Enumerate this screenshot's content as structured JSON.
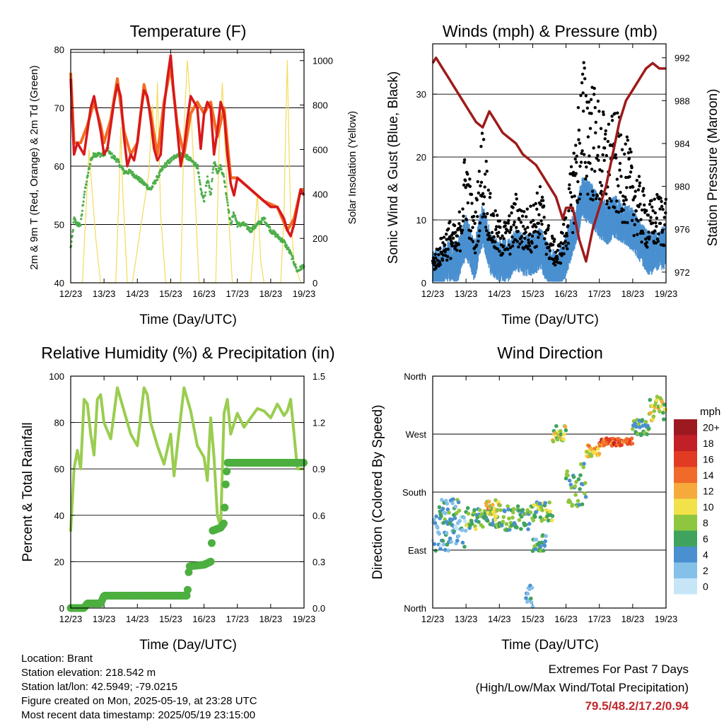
{
  "panels": {
    "temperature": {
      "title": "Temperature (F)",
      "ylabel_left": "2m & 9m T (Red, Orange) & 2m Td (Green)",
      "ylabel_right": "Solar Insolation (Yellow)",
      "xlabel": "Time (Day/UTC)"
    },
    "winds": {
      "title": "Winds (mph) & Pressure (mb)",
      "ylabel_left": "Sonic Wind & Gust (Blue, Black)",
      "ylabel_right": "Station Pressure (Maroon)",
      "xlabel": "Time (Day/UTC)"
    },
    "humidity": {
      "title": "Relative Humidity (%) & Precipitation (in)",
      "ylabel_left": "Percent & Total Rainfall",
      "xlabel": "Time (Day/UTC)"
    },
    "direction": {
      "title": "Wind Direction",
      "ylabel_left": "Direction (Colored By Speed)",
      "xlabel": "Time (Day/UTC)",
      "colorbar_title": "mph"
    }
  },
  "station": {
    "location": "Location: Brant",
    "elevation": "Station elevation: 218.542 m",
    "latlon": "Station lat/lon: 42.5949; -79.0215",
    "created": "Figure created on Mon, 2025-05-19, at 23:28 UTC",
    "recent": "Most recent data timestamp: 2025/05/19 23:15:00"
  },
  "extremes": {
    "title": "Extremes For Past 7 Days",
    "subtitle": "(High/Low/Max Wind/Total Precipitation)",
    "values": "79.5/48.2/17.2/0.94"
  },
  "colors": {
    "temp_2m": "#d7191c",
    "temp_9m": "#f46d23",
    "dewpoint": "#4daf4a",
    "solar": "#f3dc5a",
    "wind": "#4a90d0",
    "gust": "#000000",
    "pressure": "#9e1b1b",
    "rh": "#9acd50",
    "precip": "#4caf3f"
  },
  "chart_data": [
    {
      "type": "line",
      "panel": "temperature",
      "x_tick_labels": [
        "12/23",
        "13/23",
        "14/23",
        "15/23",
        "16/23",
        "17/23",
        "18/23",
        "19/23"
      ],
      "x_unit": "days since 12/23",
      "xlim": [
        0,
        7
      ],
      "ylim": [
        40,
        80
      ],
      "y_ticks": [
        40,
        50,
        60,
        70,
        80
      ],
      "y2lim": [
        0,
        1050
      ],
      "y2_ticks": [
        0,
        200,
        400,
        600,
        800,
        1000
      ],
      "grid": "horizontal",
      "series": [
        {
          "key": "t2m",
          "axis": "left",
          "x": [
            0,
            0.05,
            0.1,
            0.2,
            0.3,
            0.4,
            0.5,
            0.6,
            0.7,
            0.8,
            0.9,
            1.0,
            1.1,
            1.2,
            1.3,
            1.4,
            1.5,
            1.6,
            1.7,
            1.8,
            1.9,
            2.0,
            2.1,
            2.2,
            2.3,
            2.4,
            2.5,
            2.6,
            2.7,
            2.8,
            2.9,
            3.0,
            3.1,
            3.2,
            3.3,
            3.4,
            3.5,
            3.6,
            3.7,
            3.8,
            3.9,
            4.0,
            4.1,
            4.2,
            4.3,
            4.4,
            4.5,
            4.6,
            4.7,
            4.8,
            4.9,
            5.0,
            5.2,
            5.4,
            5.6,
            5.8,
            6.0,
            6.2,
            6.4,
            6.5,
            6.6,
            6.7,
            6.8,
            6.9,
            7.0
          ],
          "y": [
            75,
            68,
            62,
            64,
            63,
            62,
            66,
            70,
            72,
            69,
            66,
            62,
            63,
            67,
            71,
            74,
            72,
            65,
            60,
            62,
            61,
            64,
            69,
            73,
            72,
            68,
            63,
            61,
            62,
            70,
            75,
            79,
            72,
            66,
            60,
            63,
            68,
            72,
            71,
            70,
            63,
            69,
            71,
            70,
            62,
            66,
            71,
            69,
            62,
            57,
            55,
            58,
            57,
            56,
            55,
            54,
            53,
            53,
            51,
            49,
            48,
            50,
            53,
            56,
            55
          ]
        },
        {
          "key": "t9m",
          "axis": "left",
          "x": [
            0,
            0.1,
            0.3,
            0.5,
            0.7,
            0.9,
            1.0,
            1.2,
            1.4,
            1.6,
            1.8,
            2.0,
            2.2,
            2.4,
            2.6,
            2.8,
            3.0,
            3.2,
            3.4,
            3.6,
            3.8,
            4.0,
            4.2,
            4.4,
            4.6,
            4.8,
            5.0,
            5.4,
            5.8,
            6.2,
            6.5,
            6.7,
            6.9,
            7.0
          ],
          "y": [
            76,
            64,
            64,
            67,
            71,
            67,
            64,
            68,
            75,
            66,
            62,
            64,
            74,
            69,
            62,
            71,
            77,
            67,
            62,
            69,
            71,
            69,
            71,
            65,
            70,
            58,
            58,
            56,
            54,
            53,
            49,
            51,
            56,
            56
          ]
        },
        {
          "key": "dewpoint",
          "axis": "left",
          "x": [
            0,
            0.05,
            0.1,
            0.2,
            0.3,
            0.4,
            0.5,
            0.6,
            0.7,
            0.8,
            0.9,
            1.0,
            1.1,
            1.2,
            1.4,
            1.6,
            1.8,
            2.0,
            2.2,
            2.4,
            2.6,
            2.8,
            3.0,
            3.2,
            3.4,
            3.6,
            3.8,
            3.9,
            4.0,
            4.1,
            4.2,
            4.3,
            4.4,
            4.5,
            4.6,
            4.7,
            4.8,
            4.9,
            5.0,
            5.2,
            5.4,
            5.6,
            5.8,
            6.0,
            6.2,
            6.4,
            6.6,
            6.8,
            7.0
          ],
          "y": [
            46,
            48,
            51,
            50,
            50,
            55,
            58,
            61,
            62,
            62,
            62,
            62,
            63,
            62,
            61,
            59,
            59,
            58,
            57,
            56,
            58,
            60,
            61,
            62,
            62,
            61,
            60,
            56,
            54,
            58,
            55,
            61,
            59,
            60,
            58,
            54,
            50,
            52,
            50,
            50,
            49,
            50,
            51,
            49,
            48,
            47,
            45,
            42,
            43
          ]
        },
        {
          "key": "solar",
          "axis": "right",
          "x": [
            0,
            0.35,
            0.45,
            0.55,
            0.65,
            0.75,
            0.9,
            1.35,
            1.45,
            1.5,
            1.55,
            1.6,
            1.7,
            1.85,
            2.35,
            2.45,
            2.55,
            2.6,
            2.7,
            2.85,
            3.3,
            3.4,
            3.5,
            3.6,
            3.7,
            3.85,
            4.35,
            4.45,
            4.55,
            4.6,
            4.7,
            4.85,
            5.4,
            5.5,
            5.6,
            5.7,
            5.8,
            6.3,
            6.4,
            6.45,
            6.5,
            6.55,
            6.6,
            6.7,
            6.9,
            7.0
          ],
          "y": [
            0,
            0,
            300,
            600,
            400,
            200,
            0,
            0,
            400,
            700,
            450,
            300,
            0,
            0,
            500,
            800,
            600,
            900,
            300,
            0,
            0,
            700,
            1000,
            800,
            500,
            0,
            0,
            600,
            900,
            700,
            400,
            0,
            0,
            200,
            400,
            100,
            0,
            0,
            300,
            700,
            1000,
            600,
            300,
            100,
            0,
            0
          ]
        }
      ]
    },
    {
      "type": "line",
      "panel": "winds",
      "x_tick_labels": [
        "12/23",
        "13/23",
        "14/23",
        "15/23",
        "16/23",
        "17/23",
        "18/23",
        "19/23"
      ],
      "x_unit": "days since 12/23",
      "xlim": [
        0,
        7
      ],
      "ylim": [
        0,
        38
      ],
      "y_ticks": [
        0,
        10,
        20,
        30
      ],
      "y2lim": [
        971.0,
        993.3
      ],
      "y2_ticks": [
        972,
        976,
        980,
        984,
        988,
        992
      ],
      "grid": "horizontal",
      "series": [
        {
          "key": "pressure",
          "axis": "right",
          "x": [
            0,
            0.1,
            0.3,
            0.5,
            0.7,
            0.9,
            1.1,
            1.3,
            1.5,
            1.7,
            1.9,
            2.1,
            2.3,
            2.5,
            2.7,
            2.9,
            3.1,
            3.3,
            3.5,
            3.7,
            3.9,
            4.0,
            4.2,
            4.4,
            4.6,
            4.8,
            5.0,
            5.2,
            5.4,
            5.6,
            5.8,
            6.0,
            6.2,
            6.4,
            6.6,
            6.8,
            7.0
          ],
          "y": [
            991.5,
            992,
            991,
            990,
            989,
            988,
            987,
            986,
            985.5,
            987,
            986,
            985,
            984.5,
            984,
            983,
            982.5,
            982,
            981,
            980,
            979,
            977,
            978,
            978,
            975,
            973,
            976,
            978,
            980,
            983,
            986,
            988,
            989,
            990,
            991,
            991.5,
            991,
            991
          ]
        },
        {
          "key": "wind_mean",
          "axis": "left",
          "x": [
            0,
            0.25,
            0.5,
            0.75,
            1.0,
            1.25,
            1.5,
            1.75,
            2.0,
            2.25,
            2.5,
            2.75,
            3.0,
            3.25,
            3.5,
            3.75,
            4.0,
            4.25,
            4.5,
            4.75,
            5.0,
            5.25,
            5.5,
            5.75,
            6.0,
            6.25,
            6.5,
            6.75,
            7.0
          ],
          "y": [
            2,
            3,
            4,
            4,
            8,
            4,
            10,
            5,
            4,
            4,
            6,
            5,
            5,
            6,
            3,
            2,
            5,
            9,
            14,
            13,
            11,
            10,
            11,
            10,
            9,
            7,
            5,
            6,
            6
          ]
        },
        {
          "key": "gust_mean",
          "axis": "left",
          "x": [
            0,
            0.25,
            0.5,
            0.75,
            1.0,
            1.25,
            1.5,
            1.75,
            2.0,
            2.25,
            2.5,
            2.75,
            3.0,
            3.25,
            3.5,
            3.75,
            4.0,
            4.25,
            4.5,
            4.75,
            5.0,
            5.25,
            5.5,
            5.75,
            6.0,
            6.25,
            6.5,
            6.75,
            7.0
          ],
          "y": [
            3,
            5,
            7,
            6,
            16,
            7,
            18,
            9,
            7,
            7,
            10,
            8,
            9,
            11,
            6,
            4,
            8,
            16,
            25,
            23,
            20,
            18,
            19,
            17,
            14,
            11,
            9,
            10,
            10
          ]
        }
      ]
    },
    {
      "type": "line",
      "panel": "humidity",
      "x_tick_labels": [
        "12/23",
        "13/23",
        "14/23",
        "15/23",
        "16/23",
        "17/23",
        "18/23",
        "19/23"
      ],
      "x_unit": "days since 12/23",
      "xlim": [
        0,
        7
      ],
      "ylim": [
        0,
        100
      ],
      "y_ticks": [
        0,
        20,
        40,
        60,
        80,
        100
      ],
      "y2lim": [
        0,
        1.5
      ],
      "y2_ticks": [
        0.0,
        0.3,
        0.6,
        0.9,
        1.2,
        1.5
      ],
      "grid": "horizontal",
      "series": [
        {
          "key": "rh",
          "axis": "left",
          "x": [
            0,
            0.1,
            0.2,
            0.3,
            0.4,
            0.5,
            0.6,
            0.7,
            0.8,
            0.9,
            1.0,
            1.2,
            1.4,
            1.6,
            1.8,
            2.0,
            2.2,
            2.3,
            2.4,
            2.6,
            2.8,
            3.0,
            3.1,
            3.2,
            3.4,
            3.6,
            3.8,
            4.0,
            4.1,
            4.2,
            4.3,
            4.4,
            4.5,
            4.6,
            4.7,
            4.8,
            5.0,
            5.2,
            5.4,
            5.6,
            5.8,
            6.0,
            6.2,
            6.4,
            6.5,
            6.6,
            6.7,
            6.8,
            7.0
          ],
          "y": [
            33,
            60,
            68,
            60,
            90,
            88,
            75,
            66,
            90,
            92,
            80,
            73,
            95,
            85,
            75,
            70,
            95,
            92,
            80,
            70,
            62,
            75,
            57,
            70,
            95,
            85,
            70,
            65,
            55,
            82,
            65,
            40,
            35,
            84,
            90,
            75,
            84,
            78,
            82,
            86,
            85,
            82,
            88,
            83,
            85,
            90,
            75,
            60,
            60
          ]
        },
        {
          "key": "precip",
          "axis": "right",
          "x": [
            0,
            0.4,
            0.5,
            0.9,
            1.0,
            2.0,
            3.0,
            3.5,
            3.55,
            4.0,
            4.2,
            4.25,
            4.5,
            4.6,
            4.65,
            4.7,
            4.8,
            5.0,
            5.5,
            6.0,
            6.5,
            7.0
          ],
          "y": [
            0,
            0,
            0.03,
            0.03,
            0.08,
            0.08,
            0.08,
            0.08,
            0.27,
            0.28,
            0.3,
            0.5,
            0.52,
            0.55,
            0.8,
            0.94,
            0.94,
            0.94,
            0.94,
            0.94,
            0.94,
            0.94
          ]
        }
      ]
    },
    {
      "type": "scatter",
      "panel": "direction",
      "x_tick_labels": [
        "12/23",
        "13/23",
        "14/23",
        "15/23",
        "16/23",
        "17/23",
        "18/23",
        "19/23"
      ],
      "x_unit": "days since 12/23",
      "xlim": [
        0,
        7
      ],
      "y_tick_labels": [
        "North",
        "East",
        "South",
        "West",
        "North"
      ],
      "y_tick_values": [
        0,
        90,
        180,
        270,
        360
      ],
      "ylim": [
        0,
        360
      ],
      "grid": "horizontal",
      "colorbar": {
        "labels": [
          "0",
          "2",
          "4",
          "6",
          "8",
          "10",
          "12",
          "14",
          "16",
          "18",
          "20+"
        ],
        "colors": [
          "#c6e6f7",
          "#85c0e8",
          "#4a90d0",
          "#3fa35e",
          "#8ec63f",
          "#f2e24a",
          "#f6aa3c",
          "#f06a2a",
          "#e23b24",
          "#c22027",
          "#9c1a1f"
        ]
      },
      "segments": [
        {
          "x0": 0.0,
          "x1": 1.0,
          "dir": 115,
          "spread": 55,
          "speed": 3
        },
        {
          "x0": 0.2,
          "x1": 0.8,
          "dir": 150,
          "spread": 40,
          "speed": 5
        },
        {
          "x0": 1.0,
          "x1": 2.0,
          "dir": 140,
          "spread": 35,
          "speed": 7
        },
        {
          "x0": 1.6,
          "x1": 2.0,
          "dir": 155,
          "spread": 25,
          "speed": 11
        },
        {
          "x0": 2.0,
          "x1": 3.0,
          "dir": 140,
          "spread": 40,
          "speed": 6
        },
        {
          "x0": 2.8,
          "x1": 3.0,
          "dir": 20,
          "spread": 60,
          "speed": 4
        },
        {
          "x0": 3.0,
          "x1": 3.6,
          "dir": 150,
          "spread": 30,
          "speed": 7
        },
        {
          "x0": 3.6,
          "x1": 4.0,
          "dir": 270,
          "spread": 25,
          "speed": 9
        },
        {
          "x0": 3.0,
          "x1": 3.4,
          "dir": 100,
          "spread": 30,
          "speed": 5
        },
        {
          "x0": 4.0,
          "x1": 4.6,
          "dir": 190,
          "spread": 70,
          "speed": 6
        },
        {
          "x0": 4.6,
          "x1": 5.0,
          "dir": 245,
          "spread": 20,
          "speed": 11
        },
        {
          "x0": 5.0,
          "x1": 6.0,
          "dir": 258,
          "spread": 12,
          "speed": 15
        },
        {
          "x0": 6.0,
          "x1": 6.5,
          "dir": 280,
          "spread": 25,
          "speed": 6
        },
        {
          "x0": 6.5,
          "x1": 7.0,
          "dir": 310,
          "spread": 40,
          "speed": 9
        }
      ]
    }
  ]
}
